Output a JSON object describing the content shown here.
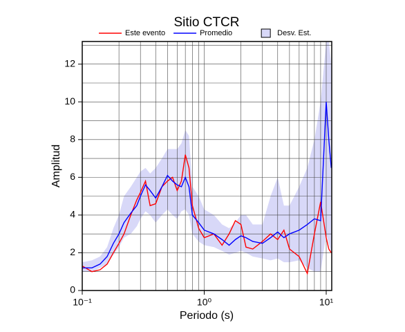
{
  "chart_data": {
    "type": "line",
    "title": "Sitio CTCR",
    "x_label": "Periodo (s)",
    "y_label": "Amplitud",
    "xscale": "log",
    "grid": true,
    "legend": "top",
    "x": [
      0.1,
      0.12,
      0.14,
      0.16,
      0.18,
      0.2,
      0.22,
      0.25,
      0.28,
      0.3,
      0.33,
      0.36,
      0.4,
      0.45,
      0.5,
      0.55,
      0.6,
      0.65,
      0.7,
      0.75,
      0.8,
      0.9,
      1.0,
      1.2,
      1.4,
      1.6,
      1.8,
      2.0,
      2.2,
      2.5,
      3.0,
      3.5,
      4.0,
      4.5,
      5.0,
      6.0,
      7.0,
      8.0,
      9.0,
      10.0,
      10.5,
      11
    ],
    "series": [
      {
        "name": "Este evento",
        "color": "#ff0000",
        "values": [
          1.3,
          1.0,
          1.1,
          1.4,
          2.0,
          2.5,
          3.0,
          4.0,
          4.8,
          5.2,
          5.8,
          4.5,
          4.6,
          5.5,
          5.8,
          6.0,
          5.3,
          5.8,
          7.2,
          6.5,
          4.5,
          3.3,
          2.8,
          3.0,
          2.4,
          3.0,
          3.7,
          3.5,
          2.3,
          2.2,
          2.6,
          3.0,
          2.7,
          3.2,
          2.2,
          1.8,
          0.9,
          3.0,
          4.7,
          2.8,
          2.2,
          2.0
        ]
      },
      {
        "name": "Promedio",
        "color": "#0000ff",
        "values": [
          1.2,
          1.2,
          1.4,
          1.8,
          2.5,
          3.0,
          3.6,
          4.1,
          4.5,
          5.0,
          5.6,
          5.3,
          4.9,
          5.5,
          6.1,
          5.8,
          5.6,
          5.5,
          6.0,
          5.5,
          4.0,
          3.6,
          3.2,
          3.0,
          2.7,
          2.4,
          2.7,
          2.9,
          2.8,
          2.6,
          2.5,
          2.8,
          3.1,
          2.8,
          3.0,
          3.2,
          3.5,
          3.8,
          3.7,
          10.0,
          8.0,
          6.5
        ]
      }
    ],
    "band": {
      "name": "Desv. Est.",
      "color": "#d8d8f8",
      "lower": [
        1.0,
        1.0,
        1.2,
        1.4,
        1.9,
        2.3,
        2.8,
        3.0,
        3.4,
        3.8,
        4.2,
        4.0,
        3.6,
        4.0,
        4.3,
        4.0,
        3.8,
        4.2,
        4.3,
        4.0,
        3.0,
        2.6,
        2.4,
        2.3,
        2.1,
        1.9,
        2.0,
        2.1,
        2.0,
        1.8,
        1.7,
        1.6,
        1.7,
        1.5,
        1.5,
        1.6,
        1.2,
        1.0,
        1.0,
        3.0,
        2.5,
        2.0
      ],
      "upper": [
        1.5,
        1.6,
        1.8,
        2.3,
        3.3,
        4.0,
        5.0,
        5.5,
        6.0,
        6.3,
        6.5,
        6.2,
        6.5,
        7.0,
        7.5,
        7.5,
        7.5,
        7.8,
        8.5,
        8.2,
        5.5,
        5.0,
        4.3,
        4.0,
        3.5,
        3.3,
        3.6,
        4.0,
        4.0,
        3.5,
        3.5,
        5.0,
        6.0,
        4.5,
        4.5,
        5.5,
        6.5,
        8.0,
        10.0,
        13.2,
        13.2,
        12.0
      ]
    },
    "xlim": [
      0.1,
      11.1
    ],
    "ylim": [
      0,
      13.2
    ],
    "xticks": [
      {
        "value": 0.1,
        "label": "10⁻¹"
      },
      {
        "value": 1,
        "label": "10⁰"
      },
      {
        "value": 10,
        "label": "10¹"
      }
    ],
    "xminor": [
      0.2,
      0.3,
      0.4,
      0.5,
      0.6,
      0.7,
      0.8,
      0.9,
      2,
      3,
      4,
      5,
      6,
      7,
      8,
      9
    ],
    "yticks": [
      0,
      2,
      4,
      6,
      8,
      10,
      12
    ],
    "yminor": [
      1,
      3,
      5,
      7,
      9,
      11,
      13
    ]
  }
}
